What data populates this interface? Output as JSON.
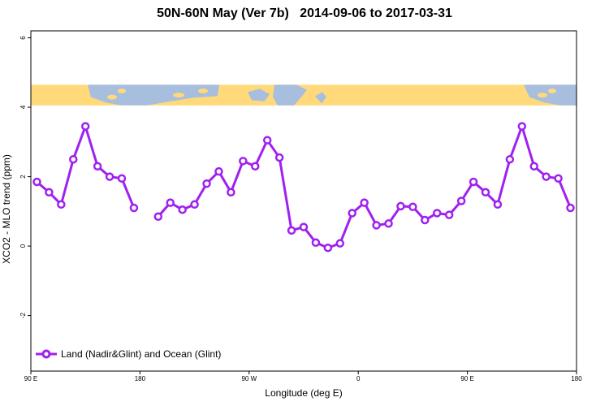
{
  "chart_data": {
    "type": "line",
    "title": "50N-60N May (Ver 7b)   2014-09-06 to 2017-03-31",
    "xlabel": "Longitude (deg E)",
    "ylabel": "XCO2 - MLO trend (ppm)",
    "xlim": [
      90,
      540
    ],
    "ylim": [
      -3.6,
      6.2
    ],
    "x_ticks": [
      {
        "value": 90,
        "label": "90 E"
      },
      {
        "value": 180,
        "label": "180"
      },
      {
        "value": 270,
        "label": "90 W"
      },
      {
        "value": 360,
        "label": "0"
      },
      {
        "value": 450,
        "label": "90 E"
      },
      {
        "value": 540,
        "label": "180"
      }
    ],
    "y_ticks": [
      {
        "value": 6,
        "label": "6"
      },
      {
        "value": 4,
        "label": "4"
      },
      {
        "value": 2,
        "label": "2"
      },
      {
        "value": 0,
        "label": "0"
      },
      {
        "value": -2,
        "label": "-2"
      }
    ],
    "series": [
      {
        "name": "Land (Nadir&Glint) and Ocean (Glint)",
        "color": "#a020f0",
        "x": [
          95,
          105,
          115,
          125,
          135,
          145,
          155,
          165,
          175,
          185,
          195,
          205,
          215,
          225,
          235,
          245,
          255,
          265,
          275,
          285,
          295,
          305,
          315,
          325,
          335,
          345,
          355,
          365,
          375,
          385,
          395,
          405,
          415,
          425,
          435,
          445,
          455,
          465,
          475,
          485,
          495,
          505,
          515,
          525,
          535
        ],
        "y": [
          1.85,
          1.55,
          1.2,
          2.5,
          3.45,
          2.3,
          2.0,
          1.95,
          1.1,
          null,
          0.85,
          1.25,
          1.05,
          1.2,
          1.8,
          2.15,
          1.55,
          2.45,
          2.3,
          3.05,
          2.55,
          0.45,
          0.55,
          0.1,
          -0.05,
          0.08,
          0.95,
          1.25,
          0.6,
          0.65,
          1.15,
          1.13,
          0.75,
          0.95,
          0.9,
          1.3,
          1.85,
          1.55,
          1.2,
          2.5,
          3.45,
          2.3,
          2.0,
          1.95,
          1.1
        ]
      }
    ],
    "map_strip": {
      "y_range": [
        4.05,
        4.65
      ],
      "land_color": "#ffd97a",
      "ocean_color": "#a8bedf"
    },
    "grid": false,
    "legend": "bottom-left"
  }
}
